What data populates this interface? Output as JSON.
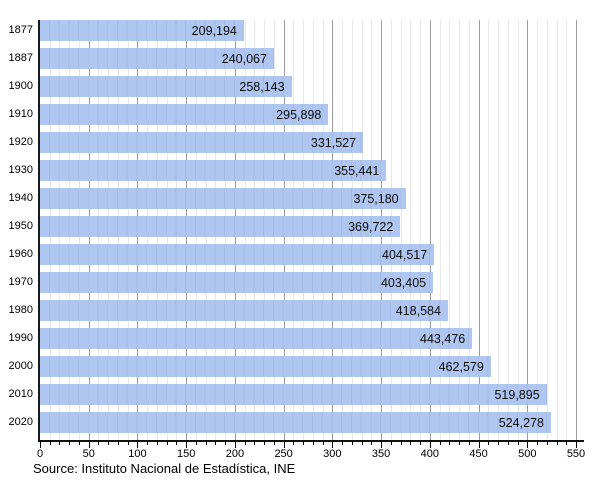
{
  "chart_data": {
    "type": "bar",
    "orientation": "horizontal",
    "categories": [
      "1877",
      "1887",
      "1900",
      "1910",
      "1920",
      "1930",
      "1940",
      "1950",
      "1960",
      "1970",
      "1980",
      "1990",
      "2000",
      "2010",
      "2020"
    ],
    "values": [
      209194,
      240067,
      258143,
      295898,
      331527,
      355441,
      375180,
      369722,
      404517,
      403405,
      418584,
      443476,
      462579,
      519895,
      524278
    ],
    "value_labels": [
      "209,194",
      "240,067",
      "258,143",
      "295,898",
      "331,527",
      "355,441",
      "375,180",
      "369,722",
      "404,517",
      "403,405",
      "418,584",
      "443,476",
      "462,579",
      "519,895",
      "524,278"
    ],
    "x_axis": {
      "min": 0,
      "max": 550,
      "minor_step": 10,
      "major_step": 50,
      "tick_labels": [
        "0",
        "50",
        "100",
        "150",
        "200",
        "250",
        "300",
        "350",
        "400",
        "450",
        "500",
        "550"
      ],
      "value_divisor": 1000
    },
    "ylabel": "",
    "xlabel": "",
    "grid": "on",
    "legend": "none",
    "source": "Source: Instituto Nacional de Estadística, INE",
    "colors": {
      "bar": "#afc6f1",
      "grid_minor": "#e9e9e9",
      "grid_major": "#9c9c9c",
      "axis": "#000000",
      "text": "#000000",
      "background": "#ffffff"
    }
  }
}
